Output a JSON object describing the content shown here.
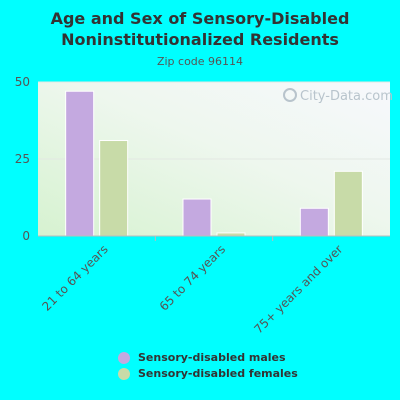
{
  "chart_data": {
    "type": "bar",
    "title": "Age and Sex of Sensory-Disabled\nNoninstitutionalized Residents",
    "subtitle": "Zip code 96114",
    "categories": [
      "21 to 64 years",
      "65 to 74 years",
      "75+ years and over"
    ],
    "series": [
      {
        "name": "Sensory-disabled males",
        "values": [
          47,
          12,
          9
        ],
        "color": "#c4a9e0"
      },
      {
        "name": "Sensory-disabled females",
        "values": [
          31,
          1,
          21
        ],
        "color": "#c8dba8"
      }
    ],
    "ylim": [
      0,
      50
    ],
    "yticks": [
      0,
      25,
      50
    ],
    "grid": true,
    "legend_position": "bottom",
    "watermark": "City-Data.com"
  }
}
